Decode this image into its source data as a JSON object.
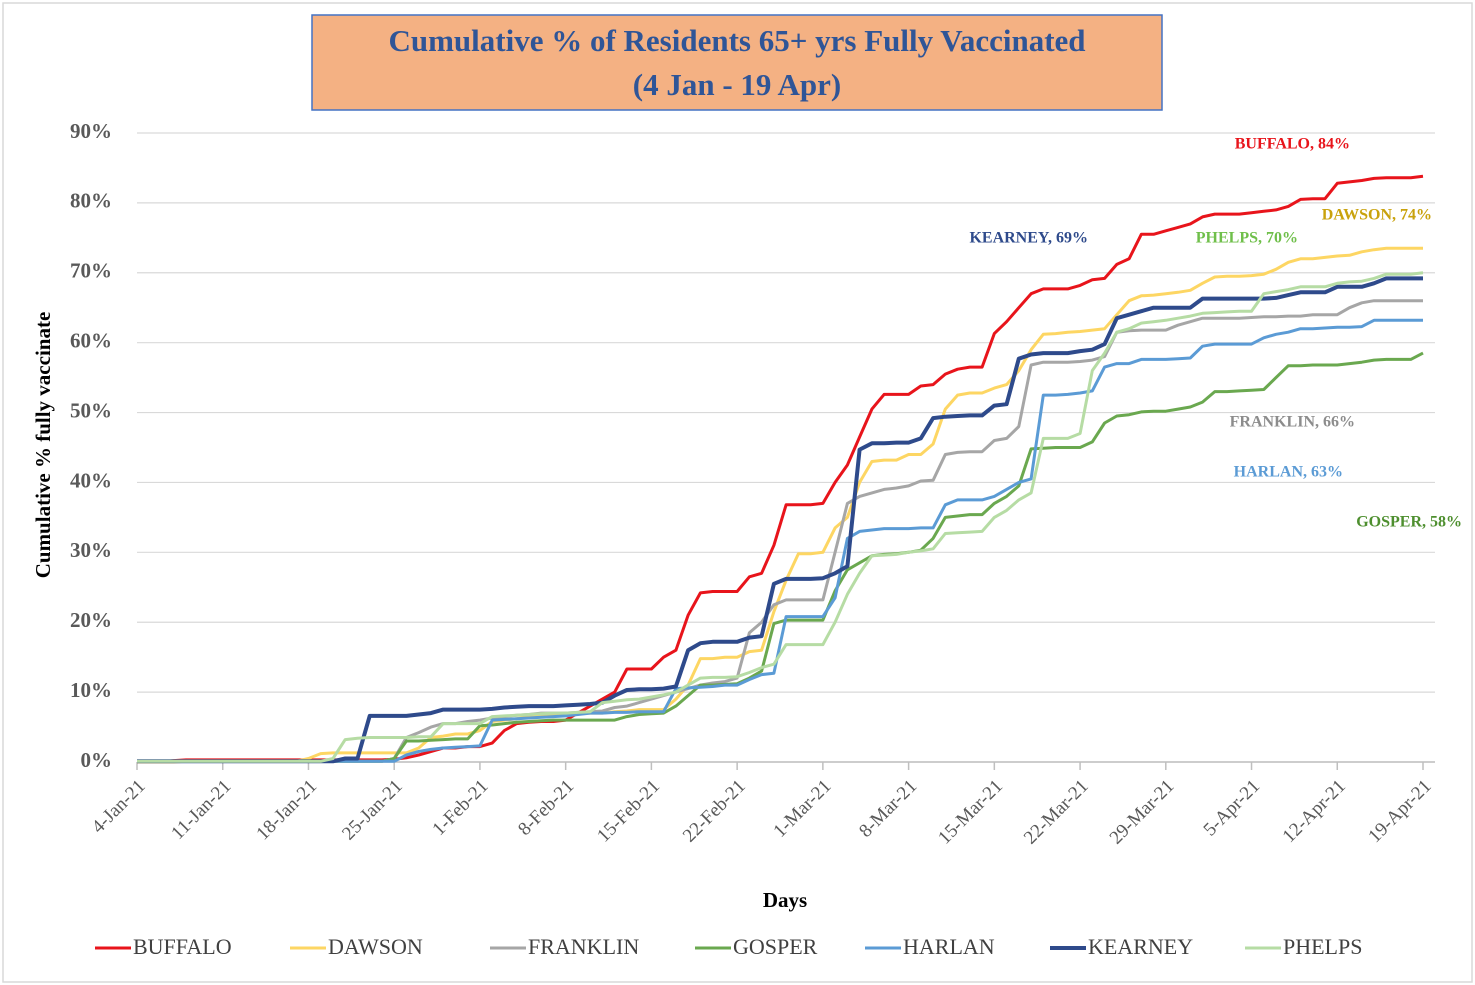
{
  "chart_data": {
    "type": "line",
    "title": "Cumulative % of Residents 65+ yrs Fully Vaccinated",
    "subtitle": "(4 Jan - 19 Apr)",
    "x_label": "Days",
    "y_label": "Cumulative % fully vaccinate",
    "categories": [
      "4-Jan-21",
      null,
      null,
      null,
      null,
      null,
      null,
      "11-Jan-21",
      null,
      null,
      null,
      null,
      null,
      null,
      "18-Jan-21",
      null,
      null,
      null,
      null,
      null,
      null,
      "25-Jan-21",
      null,
      null,
      null,
      null,
      null,
      null,
      "1-Feb-21",
      null,
      null,
      null,
      null,
      null,
      null,
      "8-Feb-21",
      null,
      null,
      null,
      null,
      null,
      null,
      "15-Feb-21",
      null,
      null,
      null,
      null,
      null,
      null,
      "22-Feb-21",
      null,
      null,
      null,
      null,
      null,
      null,
      "1-Mar-21",
      null,
      null,
      null,
      null,
      null,
      null,
      "8-Mar-21",
      null,
      null,
      null,
      null,
      null,
      null,
      "15-Mar-21",
      null,
      null,
      null,
      null,
      null,
      null,
      "22-Mar-21",
      null,
      null,
      null,
      null,
      null,
      null,
      "29-Mar-21",
      null,
      null,
      null,
      null,
      null,
      null,
      "5-Apr-21",
      null,
      null,
      null,
      null,
      null,
      null,
      "12-Apr-21",
      null,
      null,
      null,
      null,
      null,
      null,
      "19-Apr-21"
    ],
    "ylim": [
      0,
      90
    ],
    "yticks": [
      {
        "value": 0,
        "label": "0%"
      },
      {
        "value": 10,
        "label": "10%"
      },
      {
        "value": 20,
        "label": "20%"
      },
      {
        "value": 30,
        "label": "30%"
      },
      {
        "value": 40,
        "label": "40%"
      },
      {
        "value": 50,
        "label": "50%"
      },
      {
        "value": 60,
        "label": "60%"
      },
      {
        "value": 70,
        "label": "70%"
      },
      {
        "value": 80,
        "label": "80%"
      },
      {
        "value": 90,
        "label": "90%"
      }
    ],
    "grid": true,
    "legend": "bottom",
    "series": [
      {
        "name": "BUFFALO",
        "color": "#e8141b",
        "values": [
          0,
          0,
          0,
          0.2,
          0.3,
          0.3,
          0.3,
          0.3,
          0.3,
          0.3,
          0.3,
          0.3,
          0.3,
          0.3,
          0.3,
          0.3,
          0.3,
          0.3,
          0.3,
          0.3,
          0.3,
          0.4,
          0.6,
          1,
          1.5,
          2,
          2,
          2.2,
          2.2,
          2.7,
          4.5,
          5.5,
          5.7,
          5.8,
          5.8,
          6,
          7,
          8,
          9,
          10,
          13.3,
          13.3,
          13.3,
          15,
          16,
          21,
          24.2,
          24.4,
          24.4,
          24.4,
          26.5,
          27,
          31,
          36.8,
          36.8,
          36.8,
          37,
          40,
          42.5,
          46.5,
          50.5,
          52.6,
          52.6,
          52.6,
          53.8,
          54,
          55.5,
          56.2,
          56.5,
          56.5,
          61.3,
          63,
          65,
          67,
          67.7,
          67.7,
          67.7,
          68.2,
          69,
          69.2,
          71.2,
          72,
          75.5,
          75.5,
          76,
          76.5,
          77,
          78,
          78.4,
          78.4,
          78.4,
          78.6,
          78.8,
          79,
          79.5,
          80.5,
          80.6,
          80.6,
          82.8,
          83,
          83.2,
          83.5,
          83.6,
          83.6,
          83.6,
          83.8
        ]
      },
      {
        "name": "DAWSON",
        "color": "#fdd663",
        "values": [
          0,
          0,
          0,
          0,
          0.1,
          0.1,
          0.1,
          0.1,
          0.1,
          0.1,
          0.1,
          0.1,
          0.1,
          0.1,
          0.5,
          1.2,
          1.3,
          1.3,
          1.3,
          1.3,
          1.3,
          1.3,
          1.3,
          2,
          3.5,
          3.7,
          4,
          4,
          4.5,
          5.8,
          6,
          6.2,
          6.5,
          6.5,
          6.8,
          7,
          7,
          7,
          7,
          7.2,
          7.3,
          7.5,
          7.5,
          7.5,
          9,
          11,
          14.8,
          14.8,
          15,
          15,
          15.8,
          16,
          21.5,
          26,
          29.8,
          29.8,
          30,
          33.5,
          35,
          40,
          43,
          43.2,
          43.2,
          44,
          44,
          45.5,
          50.5,
          52.5,
          52.8,
          52.8,
          53.5,
          54,
          56,
          59,
          61.2,
          61.3,
          61.5,
          61.6,
          61.8,
          62,
          64,
          66,
          66.7,
          66.8,
          67,
          67.2,
          67.5,
          68.5,
          69.4,
          69.5,
          69.5,
          69.6,
          69.8,
          70.5,
          71.5,
          72,
          72,
          72.2,
          72.4,
          72.5,
          73,
          73.3,
          73.5,
          73.5,
          73.5,
          73.5
        ]
      },
      {
        "name": "FRANKLIN",
        "color": "#a6a6a6",
        "values": [
          0.1,
          0.1,
          0.1,
          0.1,
          0.1,
          0.1,
          0.1,
          0.1,
          0.1,
          0.1,
          0.1,
          0.1,
          0.1,
          0.1,
          0.1,
          0.1,
          0.1,
          0.1,
          0.1,
          0.1,
          0.1,
          0.5,
          3.5,
          4.2,
          5,
          5.5,
          5.5,
          5.8,
          6,
          6.3,
          6.5,
          6.7,
          6.8,
          7,
          7,
          7,
          7.1,
          7.2,
          7.3,
          7.8,
          8,
          8.5,
          9,
          9.5,
          10,
          10.5,
          11,
          11.3,
          11.5,
          12,
          18.5,
          20,
          22.5,
          23.2,
          23.2,
          23.2,
          23.2,
          30,
          37,
          38,
          38.5,
          39,
          39.2,
          39.5,
          40.2,
          40.3,
          44,
          44.3,
          44.4,
          44.4,
          46,
          46.3,
          48,
          56.8,
          57.2,
          57.2,
          57.2,
          57.3,
          57.5,
          58,
          61.5,
          61.7,
          61.8,
          61.8,
          61.8,
          62.5,
          63,
          63.5,
          63.5,
          63.5,
          63.5,
          63.6,
          63.7,
          63.7,
          63.8,
          63.8,
          64,
          64,
          64,
          65,
          65.7,
          66,
          66,
          66,
          66,
          66
        ]
      },
      {
        "name": "GOSPER",
        "color": "#6aa84f",
        "values": [
          0.1,
          0.1,
          0.1,
          0.1,
          0.1,
          0.1,
          0.1,
          0.1,
          0.1,
          0.1,
          0.1,
          0.1,
          0.1,
          0.1,
          0.1,
          0.1,
          0.1,
          0.1,
          0.1,
          0.1,
          0.1,
          0.5,
          3,
          3,
          3.1,
          3.2,
          3.3,
          3.3,
          5.2,
          5.3,
          5.5,
          5.7,
          5.8,
          5.9,
          6,
          6,
          6,
          6,
          6,
          6,
          6.5,
          6.8,
          6.9,
          7,
          8,
          9.5,
          11,
          11,
          11.1,
          11.2,
          12,
          13,
          19.8,
          20.3,
          20.3,
          20.3,
          20.3,
          24.5,
          27.5,
          28.5,
          29.5,
          29.7,
          29.8,
          30,
          30.3,
          32,
          35,
          35.2,
          35.4,
          35.4,
          37,
          38,
          39.5,
          44.8,
          44.9,
          45,
          45,
          45,
          45.8,
          48.5,
          49.5,
          49.7,
          50.1,
          50.2,
          50.2,
          50.5,
          50.8,
          51.5,
          53,
          53,
          53.1,
          53.2,
          53.3,
          55,
          56.7,
          56.7,
          56.8,
          56.8,
          56.8,
          57,
          57.2,
          57.5,
          57.6,
          57.6,
          57.6,
          58.5
        ]
      },
      {
        "name": "HARLAN",
        "color": "#5b9bd5",
        "values": [
          0.1,
          0.1,
          0.1,
          0.1,
          0.1,
          0.1,
          0.1,
          0.1,
          0.1,
          0.1,
          0.1,
          0.1,
          0.1,
          0.1,
          0.1,
          0.1,
          0.1,
          0.1,
          0.1,
          0.1,
          0.1,
          0.1,
          1,
          1.5,
          1.8,
          2,
          2.1,
          2.2,
          2.3,
          6,
          6.1,
          6.2,
          6.3,
          6.4,
          6.5,
          6.6,
          6.8,
          7,
          7,
          7.1,
          7.1,
          7.2,
          7.2,
          7.2,
          10.5,
          10.6,
          10.7,
          10.8,
          11,
          11,
          11.8,
          12.5,
          12.7,
          20.8,
          20.8,
          20.8,
          20.8,
          23.5,
          32,
          33,
          33.2,
          33.4,
          33.4,
          33.4,
          33.5,
          33.5,
          36.8,
          37.5,
          37.5,
          37.5,
          38,
          39,
          40,
          40.5,
          52.5,
          52.5,
          52.6,
          52.8,
          53.1,
          56.5,
          57,
          57,
          57.6,
          57.6,
          57.6,
          57.7,
          57.8,
          59.5,
          59.8,
          59.8,
          59.8,
          59.8,
          60.7,
          61.2,
          61.5,
          62,
          62,
          62.1,
          62.2,
          62.2,
          62.3,
          63.2,
          63.2,
          63.2,
          63.2,
          63.2
        ]
      },
      {
        "name": "KEARNEY",
        "color": "#2e4a8b",
        "values": [
          0.1,
          0.1,
          0.1,
          0.1,
          0.1,
          0.1,
          0.1,
          0.1,
          0.1,
          0.1,
          0.1,
          0.1,
          0.1,
          0.1,
          0.1,
          0.1,
          0.1,
          0.5,
          0.5,
          6.6,
          6.6,
          6.6,
          6.6,
          6.8,
          7,
          7.5,
          7.5,
          7.5,
          7.5,
          7.6,
          7.8,
          7.9,
          8,
          8,
          8,
          8.1,
          8.2,
          8.3,
          8.5,
          9.5,
          10.3,
          10.4,
          10.4,
          10.5,
          10.8,
          16,
          17,
          17.2,
          17.2,
          17.2,
          17.8,
          18,
          25.5,
          26.2,
          26.2,
          26.2,
          26.3,
          27,
          28,
          44.7,
          45.6,
          45.6,
          45.7,
          45.7,
          46.3,
          49.2,
          49.4,
          49.5,
          49.6,
          49.6,
          51,
          51.2,
          57.7,
          58.3,
          58.5,
          58.5,
          58.5,
          58.8,
          59,
          59.8,
          63.5,
          64,
          64.5,
          65,
          65,
          65,
          65,
          66.3,
          66.3,
          66.3,
          66.3,
          66.3,
          66.3,
          66.4,
          66.8,
          67.2,
          67.2,
          67.2,
          68,
          68,
          68,
          68.5,
          69.2,
          69.2,
          69.2,
          69.2
        ]
      },
      {
        "name": "PHELPS",
        "color": "#b6dca4",
        "values": [
          0.1,
          0.1,
          0.1,
          0.1,
          0.1,
          0.1,
          0.1,
          0.1,
          0.1,
          0.1,
          0.1,
          0.1,
          0.1,
          0.1,
          0.1,
          0.1,
          0.5,
          3.2,
          3.4,
          3.5,
          3.5,
          3.5,
          3.5,
          3.6,
          3.6,
          5.5,
          5.5,
          5.5,
          5.5,
          6.5,
          6.6,
          6.7,
          6.8,
          6.9,
          7,
          7,
          7.1,
          7.2,
          8.5,
          8.7,
          8.9,
          9,
          9.3,
          9.6,
          10,
          11,
          12,
          12.1,
          12.1,
          12.2,
          12.8,
          13.5,
          14,
          16.8,
          16.8,
          16.8,
          16.8,
          20,
          24,
          27,
          29.5,
          29.6,
          29.7,
          30,
          30.2,
          30.5,
          32.7,
          32.8,
          32.9,
          33,
          35,
          36,
          37.5,
          38.5,
          46.3,
          46.3,
          46.3,
          47,
          56,
          58.5,
          61.5,
          62,
          62.8,
          63,
          63.2,
          63.5,
          63.8,
          64.2,
          64.3,
          64.4,
          64.5,
          64.5,
          67,
          67.3,
          67.6,
          68,
          68,
          68,
          68.5,
          68.7,
          68.8,
          69.2,
          69.8,
          69.8,
          69.8,
          70
        ]
      }
    ],
    "annotations": [
      {
        "text": "BUFFALO, 84%",
        "color": "#e8141b"
      },
      {
        "text": "DAWSON, 74%",
        "color": "#c9a20c"
      },
      {
        "text": "KEARNEY, 69%",
        "color": "#2e4a8b"
      },
      {
        "text": "PHELPS, 70%",
        "color": "#6fbf4a"
      },
      {
        "text": "FRANKLIN, 66%",
        "color": "#8c8c8c"
      },
      {
        "text": "HARLAN, 63%",
        "color": "#5b9bd5"
      },
      {
        "text": "GOSPER, 58%",
        "color": "#4e8f2f"
      }
    ]
  }
}
